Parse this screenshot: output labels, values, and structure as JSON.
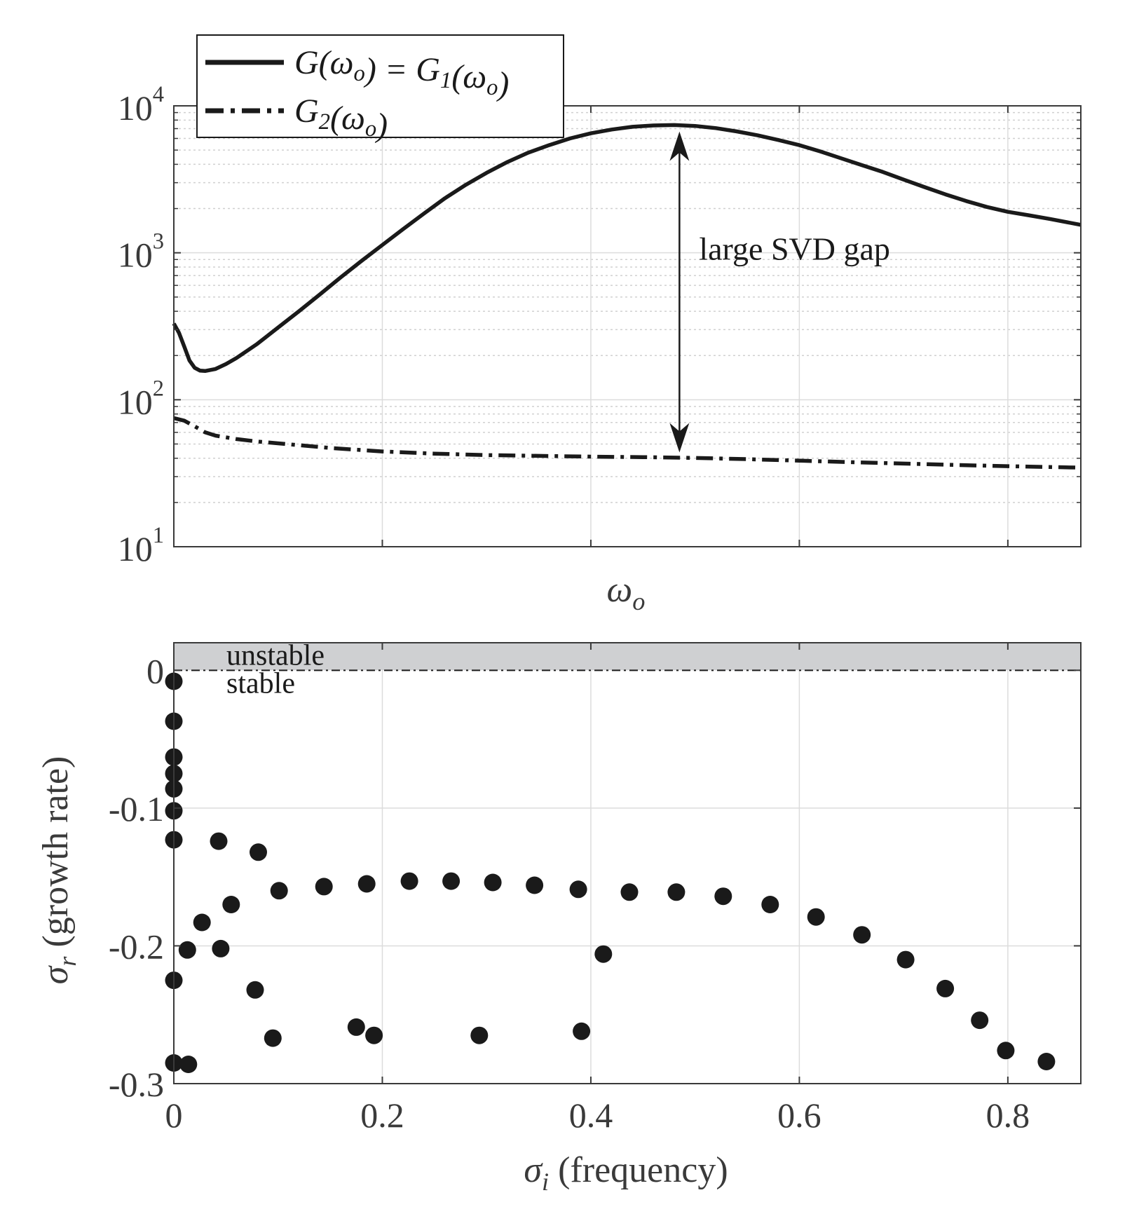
{
  "chart_data": [
    {
      "type": "line",
      "xlabel": "ωo",
      "ylabel": "",
      "yscale": "log",
      "xlim": [
        0,
        0.87
      ],
      "ylim": [
        10,
        10000
      ],
      "x_ticks": [
        0,
        0.2,
        0.4,
        0.6,
        0.8
      ],
      "y_ticks": [
        {
          "value": 10,
          "base": "10",
          "exp": "1"
        },
        {
          "value": 100,
          "base": "10",
          "exp": "2"
        },
        {
          "value": 1000,
          "base": "10",
          "exp": "3"
        },
        {
          "value": 10000,
          "base": "10",
          "exp": "4"
        }
      ],
      "grid": true,
      "legend_position": "top-left",
      "series": [
        {
          "name": "G(ωo) = G1(ωo)",
          "style": "solid",
          "x": [
            0,
            0.005,
            0.01,
            0.015,
            0.02,
            0.025,
            0.03,
            0.04,
            0.05,
            0.06,
            0.08,
            0.1,
            0.12,
            0.14,
            0.16,
            0.18,
            0.2,
            0.22,
            0.24,
            0.26,
            0.28,
            0.3,
            0.32,
            0.34,
            0.36,
            0.38,
            0.4,
            0.42,
            0.44,
            0.46,
            0.48,
            0.5,
            0.52,
            0.54,
            0.56,
            0.58,
            0.6,
            0.62,
            0.64,
            0.66,
            0.68,
            0.7,
            0.72,
            0.74,
            0.76,
            0.78,
            0.8,
            0.82,
            0.84,
            0.87
          ],
          "values": [
            330,
            285,
            230,
            185,
            165,
            158,
            157,
            162,
            175,
            192,
            240,
            310,
            400,
            520,
            680,
            880,
            1130,
            1450,
            1850,
            2350,
            2900,
            3500,
            4150,
            4800,
            5400,
            6000,
            6500,
            6900,
            7200,
            7350,
            7400,
            7300,
            7050,
            6700,
            6300,
            5850,
            5400,
            4900,
            4400,
            3950,
            3550,
            3150,
            2800,
            2500,
            2250,
            2050,
            1900,
            1800,
            1700,
            1550
          ]
        },
        {
          "name": "G2(ωo)",
          "style": "dashdot",
          "x": [
            0,
            0.01,
            0.02,
            0.03,
            0.04,
            0.06,
            0.08,
            0.1,
            0.15,
            0.2,
            0.25,
            0.3,
            0.35,
            0.4,
            0.45,
            0.5,
            0.55,
            0.6,
            0.65,
            0.7,
            0.75,
            0.8,
            0.87
          ],
          "values": [
            75,
            72,
            66,
            60,
            57,
            54,
            52,
            50.5,
            47,
            44.5,
            43,
            42,
            41.5,
            41,
            40.7,
            40.2,
            39.4,
            38.5,
            37.6,
            36.8,
            36,
            35.3,
            34.5
          ]
        }
      ],
      "annotations": [
        {
          "text": "large SVD gap",
          "type": "double-arrow",
          "x": 0.485,
          "y_from": 7300,
          "y_to": 41
        }
      ]
    },
    {
      "type": "scatter",
      "xlabel": "σi (frequency)",
      "ylabel": "σr (growth rate)",
      "xlim": [
        0,
        0.87
      ],
      "ylim": [
        -0.3,
        0.02
      ],
      "x_ticks": [
        0,
        0.2,
        0.4,
        0.6,
        0.8
      ],
      "x_tick_labels": [
        "0",
        "0.2",
        "0.4",
        "0.6",
        "0.8"
      ],
      "y_ticks": [
        0,
        -0.1,
        -0.2,
        -0.3
      ],
      "y_tick_labels": [
        "0",
        "-0.1",
        "-0.2",
        "-0.3"
      ],
      "grid": true,
      "regions": [
        {
          "label": "unstable",
          "y_from": 0,
          "y_to": 0.02,
          "color": "#cfd0d2"
        },
        {
          "label": "stable",
          "y_from": -0.3,
          "y_to": 0
        }
      ],
      "series": [
        {
          "points": [
            [
              0,
              -0.008
            ],
            [
              0,
              -0.037
            ],
            [
              0,
              -0.063
            ],
            [
              0,
              -0.075
            ],
            [
              0,
              -0.086
            ],
            [
              0,
              -0.102
            ],
            [
              0,
              -0.123
            ],
            [
              0,
              -0.225
            ],
            [
              0,
              -0.285
            ],
            [
              0.014,
              -0.286
            ],
            [
              0.013,
              -0.203
            ],
            [
              0.027,
              -0.183
            ],
            [
              0.043,
              -0.124
            ],
            [
              0.045,
              -0.202
            ],
            [
              0.055,
              -0.17
            ],
            [
              0.078,
              -0.232
            ],
            [
              0.081,
              -0.132
            ],
            [
              0.095,
              -0.267
            ],
            [
              0.101,
              -0.16
            ],
            [
              0.144,
              -0.157
            ],
            [
              0.175,
              -0.259
            ],
            [
              0.185,
              -0.155
            ],
            [
              0.192,
              -0.265
            ],
            [
              0.226,
              -0.153
            ],
            [
              0.266,
              -0.153
            ],
            [
              0.293,
              -0.265
            ],
            [
              0.306,
              -0.154
            ],
            [
              0.346,
              -0.156
            ],
            [
              0.388,
              -0.159
            ],
            [
              0.391,
              -0.262
            ],
            [
              0.412,
              -0.206
            ],
            [
              0.437,
              -0.161
            ],
            [
              0.482,
              -0.161
            ],
            [
              0.527,
              -0.164
            ],
            [
              0.572,
              -0.17
            ],
            [
              0.616,
              -0.179
            ],
            [
              0.66,
              -0.192
            ],
            [
              0.702,
              -0.21
            ],
            [
              0.74,
              -0.231
            ],
            [
              0.773,
              -0.254
            ],
            [
              0.798,
              -0.276
            ],
            [
              0.837,
              -0.284
            ]
          ]
        }
      ]
    }
  ]
}
